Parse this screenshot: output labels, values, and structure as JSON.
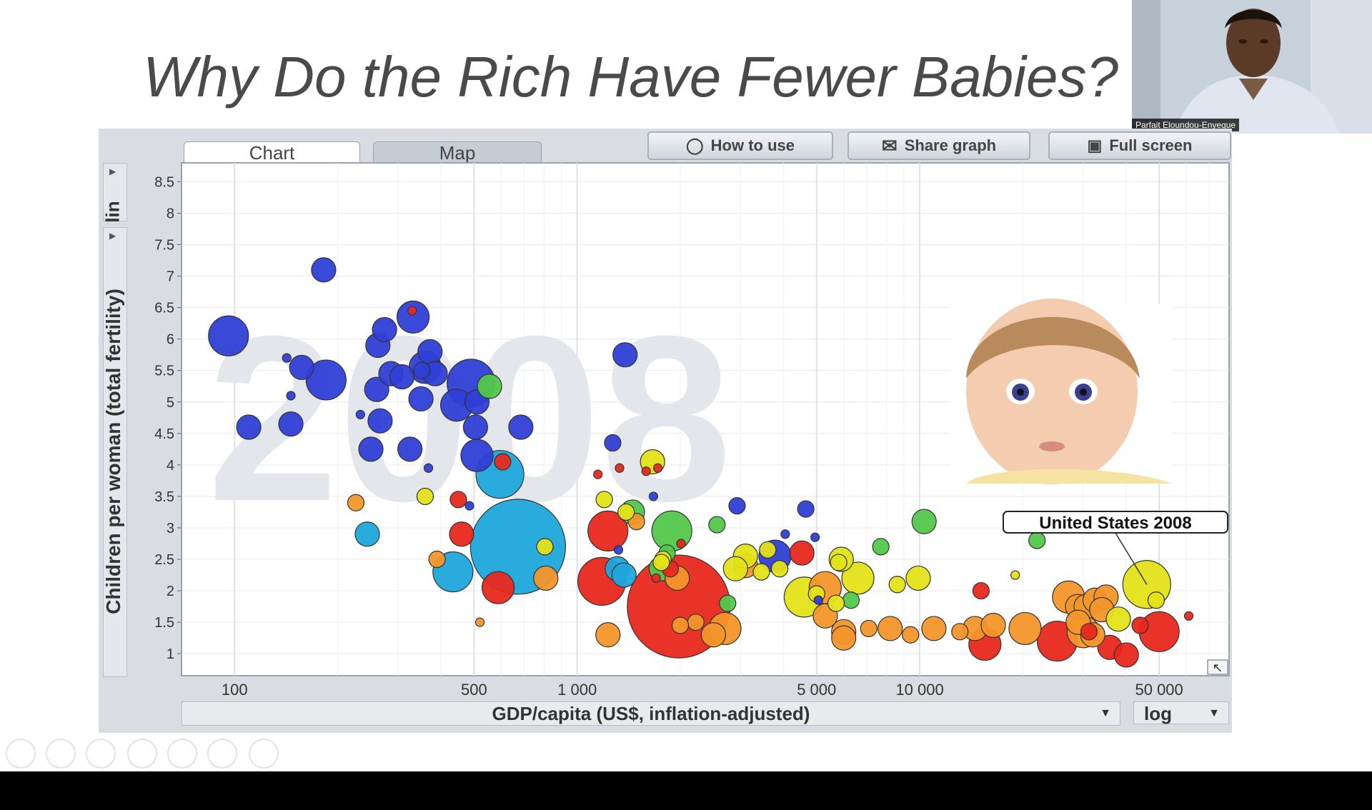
{
  "slide": {
    "title": "Why Do the Rich Have Fewer Babies?"
  },
  "webcam": {
    "name": "Parfait Eloundou-Enyegue"
  },
  "tabs": [
    {
      "label": "Chart"
    },
    {
      "label": "Map"
    }
  ],
  "toolbar": {
    "how_to_use": "How to use",
    "share_graph": "Share graph",
    "full_screen": "Full screen"
  },
  "y_scale_label": "lin",
  "x_scale_label": "log",
  "colors": {
    "asia_blue": "#1fa7dc",
    "africa_dark_blue": "#2f3fd6",
    "europe_orange": "#f3962a",
    "americas_yellow": "#e3e318",
    "red": "#e8281e",
    "green": "#52c84a"
  },
  "chart_data": {
    "type": "scatter",
    "title": "",
    "xlabel": "GDP/capita (US$, inflation-adjusted)",
    "ylabel": "Children per woman (total fertility)",
    "xscale": "log",
    "yscale": "linear",
    "xlim": [
      70,
      80000
    ],
    "ylim": [
      0.65,
      8.8
    ],
    "x_ticks": [
      100,
      500,
      1000,
      5000,
      10000,
      50000
    ],
    "x_tick_labels": [
      "100",
      "500",
      "1 000",
      "5 000",
      "10 000",
      "50 000"
    ],
    "y_ticks": [
      1,
      1.5,
      2,
      2.5,
      3,
      3.5,
      4,
      4.5,
      5,
      5.5,
      6,
      6.5,
      7,
      7.5,
      8,
      8.5
    ],
    "y_tick_labels": [
      "1",
      "1.5",
      "2",
      "2.5",
      "3",
      "3.5",
      "4",
      "4.5",
      "5",
      "5.5",
      "6",
      "6.5",
      "7",
      "7.5",
      "8",
      "8.5"
    ],
    "grid": true,
    "year_watermark": "2008",
    "annotation": {
      "label": "United States 2008",
      "x": 46000,
      "y": 2.1
    },
    "points": [
      {
        "x": 96,
        "y": 6.05,
        "r": 2,
        "c": "#2f3fd6"
      },
      {
        "x": 182,
        "y": 7.1,
        "r": 1,
        "c": "#2f3fd6"
      },
      {
        "x": 110,
        "y": 4.6,
        "r": 1,
        "c": "#2f3fd6"
      },
      {
        "x": 142,
        "y": 5.7,
        "r": 0,
        "c": "#2f3fd6"
      },
      {
        "x": 157,
        "y": 5.55,
        "r": 1,
        "c": "#2f3fd6"
      },
      {
        "x": 146,
        "y": 5.1,
        "r": 0,
        "c": "#2f3fd6"
      },
      {
        "x": 146,
        "y": 4.65,
        "r": 1,
        "c": "#2f3fd6"
      },
      {
        "x": 185,
        "y": 5.35,
        "r": 2,
        "c": "#2f3fd6"
      },
      {
        "x": 233,
        "y": 4.8,
        "r": 0,
        "c": "#2f3fd6"
      },
      {
        "x": 250,
        "y": 4.25,
        "r": 1,
        "c": "#2f3fd6"
      },
      {
        "x": 260,
        "y": 5.2,
        "r": 1,
        "c": "#2f3fd6"
      },
      {
        "x": 262,
        "y": 5.9,
        "r": 1,
        "c": "#2f3fd6"
      },
      {
        "x": 274,
        "y": 6.15,
        "r": 1,
        "c": "#2f3fd6"
      },
      {
        "x": 266,
        "y": 4.7,
        "r": 1,
        "c": "#2f3fd6"
      },
      {
        "x": 286,
        "y": 5.45,
        "r": 1,
        "c": "#2f3fd6"
      },
      {
        "x": 308,
        "y": 5.4,
        "r": 1,
        "c": "#2f3fd6"
      },
      {
        "x": 332,
        "y": 6.35,
        "r": 1.5,
        "c": "#2f3fd6"
      },
      {
        "x": 325,
        "y": 4.25,
        "r": 1,
        "c": "#2f3fd6"
      },
      {
        "x": 350,
        "y": 5.05,
        "r": 1,
        "c": "#2f3fd6"
      },
      {
        "x": 360,
        "y": 5.55,
        "r": 1.5,
        "c": "#2f3fd6"
      },
      {
        "x": 372,
        "y": 5.8,
        "r": 1,
        "c": "#2f3fd6"
      },
      {
        "x": 385,
        "y": 5.45,
        "r": 1,
        "c": "#2f3fd6"
      },
      {
        "x": 352,
        "y": 5.5,
        "r": 0.5,
        "c": "#2f3fd6"
      },
      {
        "x": 368,
        "y": 3.95,
        "r": 0,
        "c": "#2f3fd6"
      },
      {
        "x": 445,
        "y": 4.95,
        "r": 1.5,
        "c": "#2f3fd6"
      },
      {
        "x": 490,
        "y": 5.3,
        "r": 2.5,
        "c": "#2f3fd6"
      },
      {
        "x": 505,
        "y": 4.6,
        "r": 1,
        "c": "#2f3fd6"
      },
      {
        "x": 510,
        "y": 5.0,
        "r": 1,
        "c": "#2f3fd6"
      },
      {
        "x": 510,
        "y": 4.15,
        "r": 1.5,
        "c": "#2f3fd6"
      },
      {
        "x": 685,
        "y": 4.6,
        "r": 1,
        "c": "#2f3fd6"
      },
      {
        "x": 1380,
        "y": 5.75,
        "r": 1,
        "c": "#2f3fd6"
      },
      {
        "x": 1270,
        "y": 4.35,
        "r": 0.5,
        "c": "#2f3fd6"
      },
      {
        "x": 485,
        "y": 3.35,
        "r": 0,
        "c": "#2f3fd6"
      },
      {
        "x": 1670,
        "y": 3.5,
        "r": 0,
        "c": "#2f3fd6"
      },
      {
        "x": 2930,
        "y": 3.35,
        "r": 0.5,
        "c": "#2f3fd6"
      },
      {
        "x": 4650,
        "y": 3.3,
        "r": 0.5,
        "c": "#2f3fd6"
      },
      {
        "x": 4050,
        "y": 2.9,
        "r": 0,
        "c": "#2f3fd6"
      },
      {
        "x": 4950,
        "y": 2.85,
        "r": 0,
        "c": "#2f3fd6"
      },
      {
        "x": 3780,
        "y": 2.55,
        "r": 1.5,
        "c": "#2f3fd6"
      },
      {
        "x": 5060,
        "y": 1.85,
        "r": 0,
        "c": "#2f3fd6"
      },
      {
        "x": 1320,
        "y": 2.65,
        "r": 0,
        "c": "#2f3fd6"
      },
      {
        "x": 555,
        "y": 5.25,
        "r": 1,
        "c": "#52c84a"
      },
      {
        "x": 10300,
        "y": 3.1,
        "r": 1,
        "c": "#52c84a"
      },
      {
        "x": 22000,
        "y": 2.8,
        "r": 0.5,
        "c": "#52c84a"
      },
      {
        "x": 1890,
        "y": 2.95,
        "r": 2,
        "c": "#52c84a"
      },
      {
        "x": 2560,
        "y": 3.05,
        "r": 0.5,
        "c": "#52c84a"
      },
      {
        "x": 1450,
        "y": 3.25,
        "r": 1,
        "c": "#52c84a"
      },
      {
        "x": 7700,
        "y": 2.7,
        "r": 0.5,
        "c": "#52c84a"
      },
      {
        "x": 2750,
        "y": 1.8,
        "r": 0.5,
        "c": "#52c84a"
      },
      {
        "x": 1760,
        "y": 2.35,
        "r": 1,
        "c": "#52c84a"
      },
      {
        "x": 6300,
        "y": 1.85,
        "r": 0.5,
        "c": "#52c84a"
      },
      {
        "x": 1830,
        "y": 2.6,
        "r": 0.5,
        "c": "#52c84a"
      },
      {
        "x": 595,
        "y": 3.85,
        "r": 2.5,
        "c": "#1fa7dc"
      },
      {
        "x": 672,
        "y": 2.7,
        "r": 5.5,
        "c": "#1fa7dc"
      },
      {
        "x": 434,
        "y": 2.3,
        "r": 2,
        "c": "#1fa7dc"
      },
      {
        "x": 244,
        "y": 2.9,
        "r": 1,
        "c": "#1fa7dc"
      },
      {
        "x": 1310,
        "y": 2.35,
        "r": 1,
        "c": "#1fa7dc"
      },
      {
        "x": 1370,
        "y": 2.25,
        "r": 1,
        "c": "#1fa7dc"
      },
      {
        "x": 1980,
        "y": 1.75,
        "r": 6,
        "c": "#e8281e"
      },
      {
        "x": 1180,
        "y": 2.15,
        "r": 2.5,
        "c": "#e8281e"
      },
      {
        "x": 588,
        "y": 2.05,
        "r": 1.5,
        "c": "#e8281e"
      },
      {
        "x": 1230,
        "y": 2.95,
        "r": 2,
        "c": "#e8281e"
      },
      {
        "x": 460,
        "y": 2.9,
        "r": 1,
        "c": "#e8281e"
      },
      {
        "x": 450,
        "y": 3.45,
        "r": 0.5,
        "c": "#e8281e"
      },
      {
        "x": 606,
        "y": 4.05,
        "r": 0.5,
        "c": "#e8281e"
      },
      {
        "x": 330,
        "y": 6.45,
        "r": 0,
        "c": "#e8281e"
      },
      {
        "x": 1150,
        "y": 3.85,
        "r": 0,
        "c": "#e8281e"
      },
      {
        "x": 1330,
        "y": 3.95,
        "r": 0,
        "c": "#e8281e"
      },
      {
        "x": 1720,
        "y": 3.95,
        "r": 0,
        "c": "#e8281e"
      },
      {
        "x": 2010,
        "y": 2.75,
        "r": 0,
        "c": "#e8281e"
      },
      {
        "x": 4530,
        "y": 2.6,
        "r": 1,
        "c": "#e8281e"
      },
      {
        "x": 15100,
        "y": 2.0,
        "r": 0.5,
        "c": "#e8281e"
      },
      {
        "x": 25200,
        "y": 1.2,
        "r": 2,
        "c": "#e8281e"
      },
      {
        "x": 31200,
        "y": 1.35,
        "r": 0.5,
        "c": "#e8281e"
      },
      {
        "x": 35900,
        "y": 1.1,
        "r": 1,
        "c": "#e8281e"
      },
      {
        "x": 40100,
        "y": 0.98,
        "r": 1,
        "c": "#e8281e"
      },
      {
        "x": 50000,
        "y": 1.35,
        "r": 2,
        "c": "#e8281e"
      },
      {
        "x": 15500,
        "y": 1.15,
        "r": 1.5,
        "c": "#e8281e"
      },
      {
        "x": 44000,
        "y": 1.45,
        "r": 0.5,
        "c": "#e8281e"
      },
      {
        "x": 61000,
        "y": 1.6,
        "r": 0,
        "c": "#e8281e"
      },
      {
        "x": 1870,
        "y": 2.35,
        "r": 0.5,
        "c": "#e8281e"
      },
      {
        "x": 1590,
        "y": 3.9,
        "r": 0,
        "c": "#e8281e"
      },
      {
        "x": 1700,
        "y": 2.2,
        "r": 0,
        "c": "#e8281e"
      },
      {
        "x": 1230,
        "y": 1.3,
        "r": 1,
        "c": "#f3962a"
      },
      {
        "x": 226,
        "y": 3.4,
        "r": 0.5,
        "c": "#f3962a"
      },
      {
        "x": 390,
        "y": 2.5,
        "r": 0.5,
        "c": "#f3962a"
      },
      {
        "x": 520,
        "y": 1.5,
        "r": 0,
        "c": "#f3962a"
      },
      {
        "x": 810,
        "y": 2.2,
        "r": 1,
        "c": "#f3962a"
      },
      {
        "x": 1490,
        "y": 3.1,
        "r": 0.5,
        "c": "#f3962a"
      },
      {
        "x": 2700,
        "y": 1.4,
        "r": 1.5,
        "c": "#f3962a"
      },
      {
        "x": 2500,
        "y": 1.3,
        "r": 1,
        "c": "#f3962a"
      },
      {
        "x": 1960,
        "y": 2.2,
        "r": 1,
        "c": "#f3962a"
      },
      {
        "x": 2220,
        "y": 1.5,
        "r": 0.5,
        "c": "#f3962a"
      },
      {
        "x": 5300,
        "y": 2.05,
        "r": 1.5,
        "c": "#f3962a"
      },
      {
        "x": 5300,
        "y": 1.6,
        "r": 1,
        "c": "#f3962a"
      },
      {
        "x": 6000,
        "y": 1.35,
        "r": 1,
        "c": "#f3962a"
      },
      {
        "x": 6000,
        "y": 1.25,
        "r": 1,
        "c": "#f3962a"
      },
      {
        "x": 7100,
        "y": 1.4,
        "r": 0.5,
        "c": "#f3962a"
      },
      {
        "x": 8200,
        "y": 1.4,
        "r": 1,
        "c": "#f3962a"
      },
      {
        "x": 9400,
        "y": 1.3,
        "r": 0.5,
        "c": "#f3962a"
      },
      {
        "x": 11000,
        "y": 1.4,
        "r": 1,
        "c": "#f3962a"
      },
      {
        "x": 14500,
        "y": 1.4,
        "r": 1,
        "c": "#f3962a"
      },
      {
        "x": 16400,
        "y": 1.45,
        "r": 1,
        "c": "#f3962a"
      },
      {
        "x": 20300,
        "y": 1.4,
        "r": 1.5,
        "c": "#f3962a"
      },
      {
        "x": 27200,
        "y": 1.9,
        "r": 1.5,
        "c": "#f3962a"
      },
      {
        "x": 28900,
        "y": 1.75,
        "r": 1,
        "c": "#f3962a"
      },
      {
        "x": 30600,
        "y": 1.75,
        "r": 1,
        "c": "#f3962a"
      },
      {
        "x": 32500,
        "y": 1.85,
        "r": 1,
        "c": "#f3962a"
      },
      {
        "x": 35000,
        "y": 1.9,
        "r": 1,
        "c": "#f3962a"
      },
      {
        "x": 34000,
        "y": 1.7,
        "r": 1,
        "c": "#f3962a"
      },
      {
        "x": 30000,
        "y": 1.35,
        "r": 1.5,
        "c": "#f3962a"
      },
      {
        "x": 32000,
        "y": 1.3,
        "r": 1,
        "c": "#f3962a"
      },
      {
        "x": 13100,
        "y": 1.35,
        "r": 0.5,
        "c": "#f3962a"
      },
      {
        "x": 3100,
        "y": 2.4,
        "r": 1,
        "c": "#f3962a"
      },
      {
        "x": 2000,
        "y": 1.45,
        "r": 0.5,
        "c": "#f3962a"
      },
      {
        "x": 29000,
        "y": 1.5,
        "r": 1,
        "c": "#f3962a"
      },
      {
        "x": 1780,
        "y": 2.5,
        "r": 0.5,
        "c": "#e3e318"
      },
      {
        "x": 1660,
        "y": 4.05,
        "r": 1,
        "c": "#e3e318"
      },
      {
        "x": 1200,
        "y": 3.45,
        "r": 0.5,
        "c": "#e3e318"
      },
      {
        "x": 360,
        "y": 3.5,
        "r": 0.5,
        "c": "#e3e318"
      },
      {
        "x": 805,
        "y": 2.7,
        "r": 0.5,
        "c": "#e3e318"
      },
      {
        "x": 1390,
        "y": 3.25,
        "r": 0.5,
        "c": "#e3e318"
      },
      {
        "x": 4600,
        "y": 1.9,
        "r": 2,
        "c": "#e3e318"
      },
      {
        "x": 6600,
        "y": 2.2,
        "r": 1.5,
        "c": "#e3e318"
      },
      {
        "x": 3100,
        "y": 2.55,
        "r": 1,
        "c": "#e3e318"
      },
      {
        "x": 5900,
        "y": 2.5,
        "r": 1,
        "c": "#e3e318"
      },
      {
        "x": 3600,
        "y": 2.65,
        "r": 0.5,
        "c": "#e3e318"
      },
      {
        "x": 9900,
        "y": 2.2,
        "r": 1,
        "c": "#e3e318"
      },
      {
        "x": 46000,
        "y": 2.1,
        "r": 2.5,
        "c": "#e3e318"
      },
      {
        "x": 38000,
        "y": 1.55,
        "r": 1,
        "c": "#e3e318"
      },
      {
        "x": 5800,
        "y": 2.45,
        "r": 0.5,
        "c": "#e3e318"
      },
      {
        "x": 2900,
        "y": 2.35,
        "r": 1,
        "c": "#e3e318"
      },
      {
        "x": 3450,
        "y": 2.3,
        "r": 0.5,
        "c": "#e3e318"
      },
      {
        "x": 8600,
        "y": 2.1,
        "r": 0.5,
        "c": "#e3e318"
      },
      {
        "x": 3900,
        "y": 2.35,
        "r": 0.5,
        "c": "#e3e318"
      },
      {
        "x": 5000,
        "y": 1.95,
        "r": 0.5,
        "c": "#e3e318"
      },
      {
        "x": 1760,
        "y": 2.45,
        "r": 0.5,
        "c": "#e3e318"
      },
      {
        "x": 49000,
        "y": 1.85,
        "r": 0.5,
        "c": "#e3e318"
      },
      {
        "x": 5700,
        "y": 1.8,
        "r": 0.5,
        "c": "#e3e318"
      },
      {
        "x": 19000,
        "y": 2.25,
        "r": 0,
        "c": "#e3e318"
      }
    ]
  },
  "baby_photo": {
    "name": "baby photo"
  }
}
